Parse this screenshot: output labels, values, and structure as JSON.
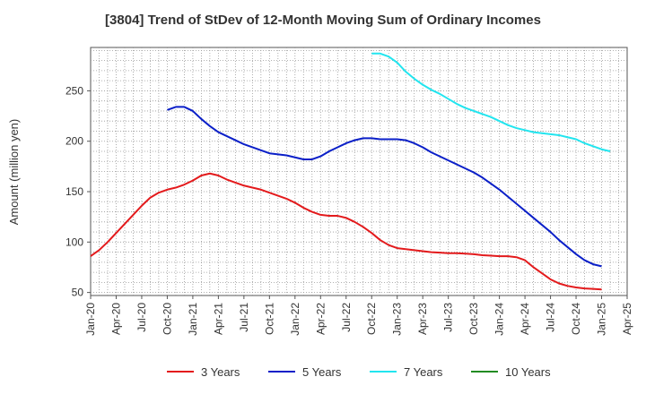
{
  "chart_data": {
    "type": "line",
    "title": "[3804]  Trend of StDev of 12-Month Moving Sum of Ordinary Incomes",
    "xlabel": "",
    "ylabel": "Amount (million yen)",
    "ylim": [
      47,
      293
    ],
    "yticks": [
      50,
      100,
      150,
      200,
      250
    ],
    "xlim": [
      "2020-01",
      "2025-04"
    ],
    "x_tick_labels": [
      "Jan-20",
      "Apr-20",
      "Jul-20",
      "Oct-20",
      "Jan-21",
      "Apr-21",
      "Jul-21",
      "Oct-21",
      "Jan-22",
      "Apr-22",
      "Jul-22",
      "Oct-22",
      "Jan-23",
      "Apr-23",
      "Jul-23",
      "Oct-23",
      "Jan-24",
      "Apr-24",
      "Jul-24",
      "Oct-24",
      "Jan-25",
      "Apr-25"
    ],
    "grid": true,
    "legend_position": "bottom",
    "colors": {
      "3 Years": "#e31a1c",
      "5 Years": "#0a1fc8",
      "7 Years": "#22e5ef",
      "10 Years": "#228b22"
    },
    "series": [
      {
        "name": "3 Years",
        "points": [
          [
            "2020-01",
            86
          ],
          [
            "2020-02",
            92
          ],
          [
            "2020-03",
            100
          ],
          [
            "2020-04",
            109
          ],
          [
            "2020-05",
            118
          ],
          [
            "2020-06",
            127
          ],
          [
            "2020-07",
            136
          ],
          [
            "2020-08",
            144
          ],
          [
            "2020-09",
            149
          ],
          [
            "2020-10",
            152
          ],
          [
            "2020-11",
            154
          ],
          [
            "2020-12",
            157
          ],
          [
            "2021-01",
            161
          ],
          [
            "2021-02",
            166
          ],
          [
            "2021-03",
            168
          ],
          [
            "2021-04",
            166
          ],
          [
            "2021-05",
            162
          ],
          [
            "2021-06",
            159
          ],
          [
            "2021-07",
            156
          ],
          [
            "2021-08",
            154
          ],
          [
            "2021-09",
            152
          ],
          [
            "2021-10",
            149
          ],
          [
            "2021-11",
            146
          ],
          [
            "2021-12",
            143
          ],
          [
            "2022-01",
            139
          ],
          [
            "2022-02",
            134
          ],
          [
            "2022-03",
            130
          ],
          [
            "2022-04",
            127
          ],
          [
            "2022-05",
            126
          ],
          [
            "2022-06",
            126
          ],
          [
            "2022-07",
            124
          ],
          [
            "2022-08",
            120
          ],
          [
            "2022-09",
            115
          ],
          [
            "2022-10",
            109
          ],
          [
            "2022-11",
            102
          ],
          [
            "2022-12",
            97
          ],
          [
            "2023-01",
            94
          ],
          [
            "2023-02",
            93
          ],
          [
            "2023-03",
            92
          ],
          [
            "2023-04",
            91
          ],
          [
            "2023-05",
            90
          ],
          [
            "2023-06",
            89.5
          ],
          [
            "2023-07",
            89
          ],
          [
            "2023-08",
            89
          ],
          [
            "2023-09",
            88.5
          ],
          [
            "2023-10",
            88
          ],
          [
            "2023-11",
            87
          ],
          [
            "2023-12",
            86.5
          ],
          [
            "2024-01",
            86
          ],
          [
            "2024-02",
            86
          ],
          [
            "2024-03",
            85
          ],
          [
            "2024-04",
            82
          ],
          [
            "2024-05",
            75
          ],
          [
            "2024-06",
            69
          ],
          [
            "2024-07",
            63
          ],
          [
            "2024-08",
            59
          ],
          [
            "2024-09",
            56.5
          ],
          [
            "2024-10",
            55
          ],
          [
            "2024-11",
            54
          ],
          [
            "2024-12",
            53.5
          ],
          [
            "2025-01",
            53
          ]
        ]
      },
      {
        "name": "5 Years",
        "points": [
          [
            "2020-10",
            231
          ],
          [
            "2020-11",
            234
          ],
          [
            "2020-12",
            234
          ],
          [
            "2021-01",
            230
          ],
          [
            "2021-02",
            222
          ],
          [
            "2021-03",
            215
          ],
          [
            "2021-04",
            209
          ],
          [
            "2021-05",
            205
          ],
          [
            "2021-06",
            201
          ],
          [
            "2021-07",
            197
          ],
          [
            "2021-08",
            194
          ],
          [
            "2021-09",
            191
          ],
          [
            "2021-10",
            188
          ],
          [
            "2021-11",
            187
          ],
          [
            "2021-12",
            186
          ],
          [
            "2022-01",
            184
          ],
          [
            "2022-02",
            182
          ],
          [
            "2022-03",
            182
          ],
          [
            "2022-04",
            185
          ],
          [
            "2022-05",
            190
          ],
          [
            "2022-06",
            194
          ],
          [
            "2022-07",
            198
          ],
          [
            "2022-08",
            201
          ],
          [
            "2022-09",
            203
          ],
          [
            "2022-10",
            203
          ],
          [
            "2022-11",
            202
          ],
          [
            "2022-12",
            202
          ],
          [
            "2023-01",
            202
          ],
          [
            "2023-02",
            201
          ],
          [
            "2023-03",
            198
          ],
          [
            "2023-04",
            194
          ],
          [
            "2023-05",
            189
          ],
          [
            "2023-06",
            185
          ],
          [
            "2023-07",
            181
          ],
          [
            "2023-08",
            177
          ],
          [
            "2023-09",
            173
          ],
          [
            "2023-10",
            169
          ],
          [
            "2023-11",
            164
          ],
          [
            "2023-12",
            158
          ],
          [
            "2024-01",
            152
          ],
          [
            "2024-02",
            145
          ],
          [
            "2024-03",
            138
          ],
          [
            "2024-04",
            131
          ],
          [
            "2024-05",
            124
          ],
          [
            "2024-06",
            117
          ],
          [
            "2024-07",
            110
          ],
          [
            "2024-08",
            102
          ],
          [
            "2024-09",
            95
          ],
          [
            "2024-10",
            88
          ],
          [
            "2024-11",
            82
          ],
          [
            "2024-12",
            78
          ],
          [
            "2025-01",
            76
          ]
        ]
      },
      {
        "name": "7 Years",
        "points": [
          [
            "2022-10",
            287
          ],
          [
            "2022-11",
            287
          ],
          [
            "2022-12",
            284
          ],
          [
            "2023-01",
            278
          ],
          [
            "2023-02",
            269
          ],
          [
            "2023-03",
            262
          ],
          [
            "2023-04",
            256
          ],
          [
            "2023-05",
            251
          ],
          [
            "2023-06",
            247
          ],
          [
            "2023-07",
            242
          ],
          [
            "2023-08",
            237
          ],
          [
            "2023-09",
            233
          ],
          [
            "2023-10",
            230
          ],
          [
            "2023-11",
            227
          ],
          [
            "2023-12",
            224
          ],
          [
            "2024-01",
            220
          ],
          [
            "2024-02",
            216
          ],
          [
            "2024-03",
            213
          ],
          [
            "2024-04",
            211
          ],
          [
            "2024-05",
            209
          ],
          [
            "2024-06",
            208
          ],
          [
            "2024-07",
            207
          ],
          [
            "2024-08",
            206
          ],
          [
            "2024-09",
            204
          ],
          [
            "2024-10",
            202
          ],
          [
            "2024-11",
            198
          ],
          [
            "2024-12",
            195
          ],
          [
            "2025-01",
            192
          ],
          [
            "2025-02",
            190
          ]
        ]
      },
      {
        "name": "10 Years",
        "points": []
      }
    ]
  }
}
